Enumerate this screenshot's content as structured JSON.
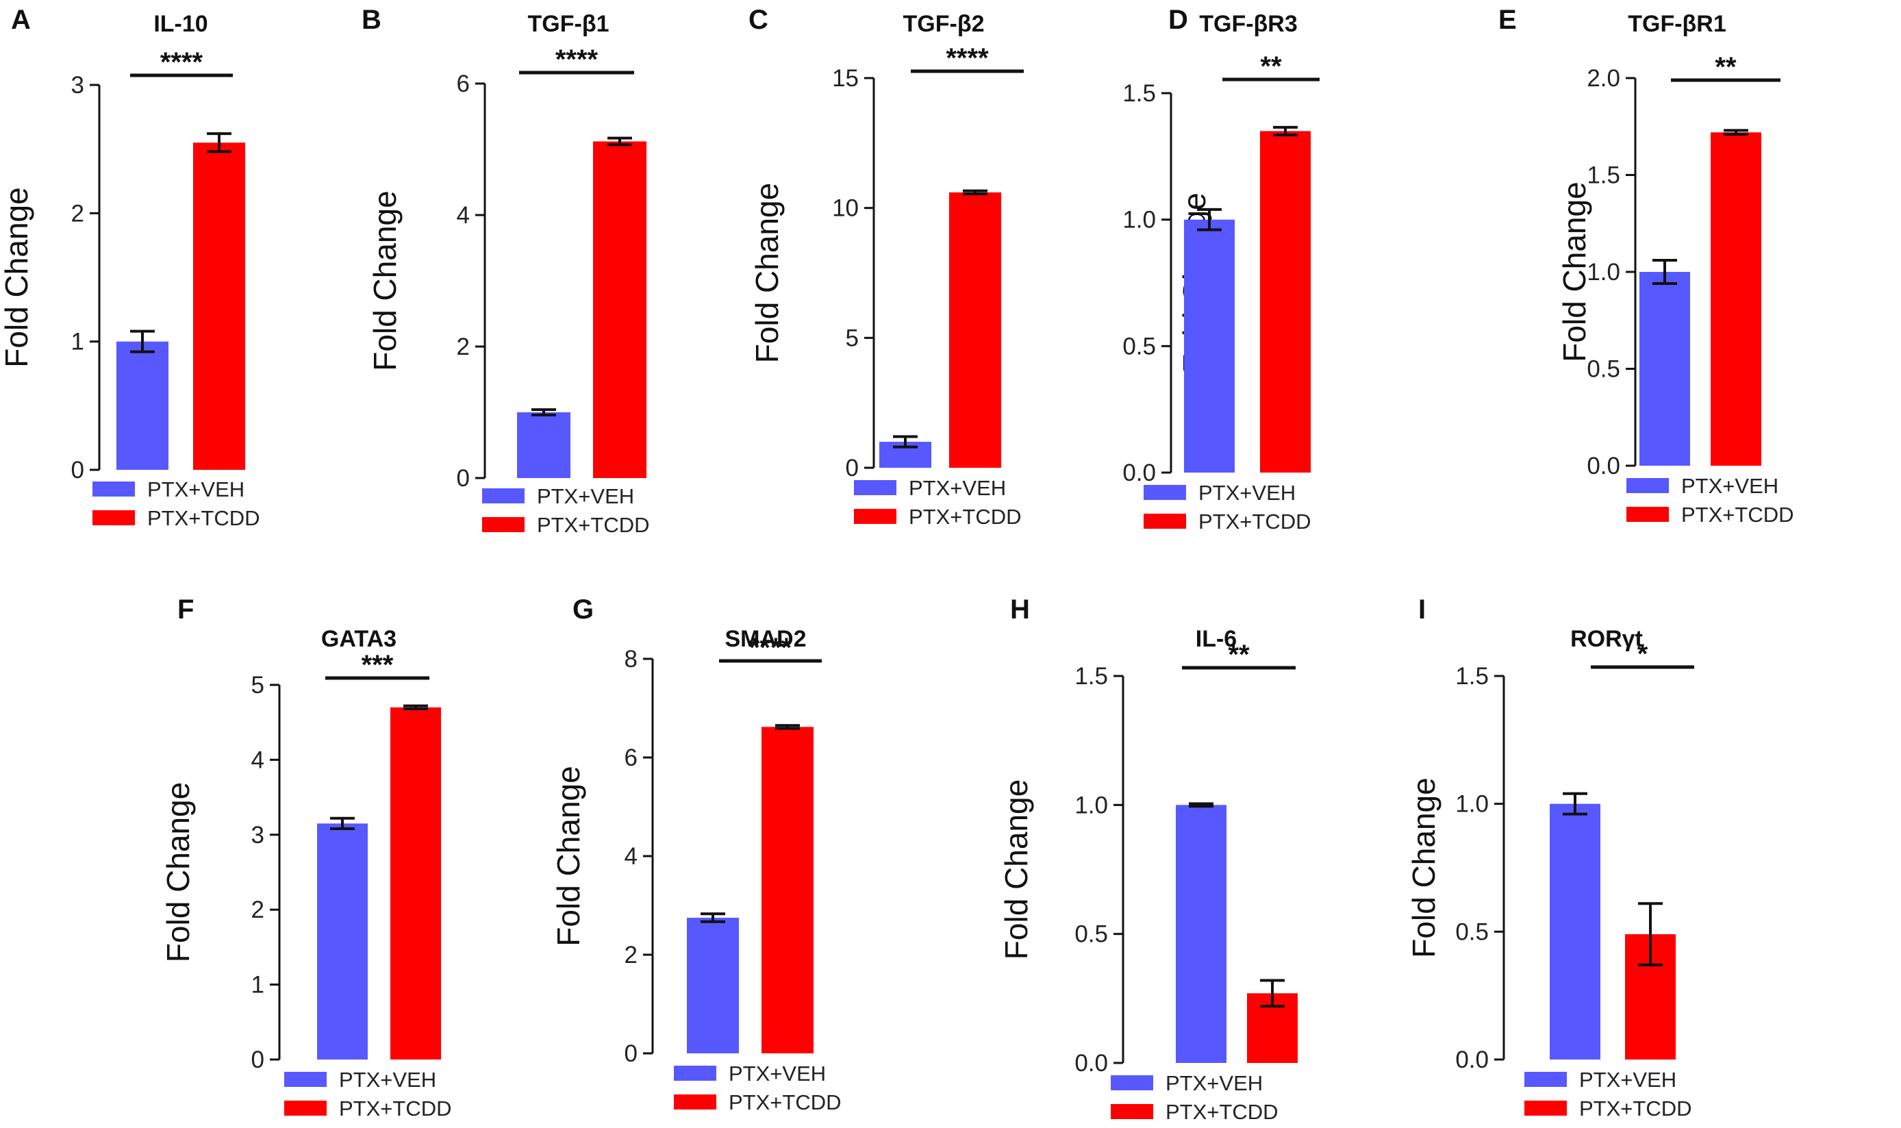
{
  "legend": {
    "veh_label": "PTX+VEH",
    "tcdd_label": "PTX+TCDD"
  },
  "colors": {
    "veh": "#5858ff",
    "tcdd": "#ff0000",
    "axis": "#111111"
  },
  "chart_data": [
    {
      "panel": "A",
      "type": "bar",
      "title": "IL-10",
      "ylabel": "Fold Change",
      "categories": [
        "PTX+VEH",
        "PTX+TCDD"
      ],
      "values": [
        1.0,
        2.55
      ],
      "errors": [
        0.08,
        0.07
      ],
      "ylim": [
        0,
        3
      ],
      "yticks": [
        "0",
        "1",
        "2",
        "3"
      ],
      "significance": "****"
    },
    {
      "panel": "B",
      "type": "bar",
      "title": "TGF-β1",
      "ylabel": "Fold Change",
      "categories": [
        "PTX+VEH",
        "PTX+TCDD"
      ],
      "values": [
        1.0,
        5.12
      ],
      "errors": [
        0.04,
        0.05
      ],
      "ylim": [
        0,
        6
      ],
      "yticks": [
        "0",
        "2",
        "4",
        "6"
      ],
      "significance": "****"
    },
    {
      "panel": "C",
      "type": "bar",
      "title": "TGF-β2",
      "ylabel": "Fold Change",
      "categories": [
        "PTX+VEH",
        "PTX+TCDD"
      ],
      "values": [
        1.0,
        10.6
      ],
      "errors": [
        0.2,
        0.06
      ],
      "ylim": [
        0,
        15
      ],
      "yticks": [
        "0",
        "5",
        "10",
        "15"
      ],
      "significance": "****"
    },
    {
      "panel": "D",
      "type": "bar",
      "title": "TGF-βR3",
      "ylabel": "Fold Change",
      "categories": [
        "PTX+VEH",
        "PTX+TCDD"
      ],
      "values": [
        1.0,
        1.35
      ],
      "errors": [
        0.04,
        0.015
      ],
      "ylim": [
        0,
        1.5
      ],
      "yticks": [
        "0.0",
        "0.5",
        "1.0",
        "1.5"
      ],
      "significance": "**"
    },
    {
      "panel": "E",
      "type": "bar",
      "title": "TGF-βR1",
      "ylabel": "Fold Change",
      "categories": [
        "PTX+VEH",
        "PTX+TCDD"
      ],
      "values": [
        1.0,
        1.72
      ],
      "errors": [
        0.06,
        0.01
      ],
      "ylim": [
        0,
        2.0
      ],
      "yticks": [
        "0.0",
        "0.5",
        "1.0",
        "1.5",
        "2.0"
      ],
      "significance": "**"
    },
    {
      "panel": "F",
      "type": "bar",
      "title": "GATA3",
      "ylabel": "Fold Change",
      "categories": [
        "PTX+VEH",
        "PTX+TCDD"
      ],
      "values": [
        3.15,
        4.7
      ],
      "errors": [
        0.07,
        0.02
      ],
      "ylim": [
        0,
        5
      ],
      "yticks": [
        "0",
        "1",
        "2",
        "3",
        "4",
        "5"
      ],
      "significance": "***"
    },
    {
      "panel": "G",
      "type": "bar",
      "title": "SMAD2",
      "ylabel": "Fold Change",
      "categories": [
        "PTX+VEH",
        "PTX+TCDD"
      ],
      "values": [
        2.75,
        6.62
      ],
      "errors": [
        0.08,
        0.03
      ],
      "ylim": [
        0,
        8
      ],
      "yticks": [
        "0",
        "2",
        "4",
        "6",
        "8"
      ],
      "significance": "****"
    },
    {
      "panel": "H",
      "type": "bar",
      "title": "IL-6",
      "ylabel": "Fold Change",
      "categories": [
        "PTX+VEH",
        "PTX+TCDD"
      ],
      "values": [
        1.0,
        0.27
      ],
      "errors": [
        0.005,
        0.05
      ],
      "ylim": [
        0,
        1.5
      ],
      "yticks": [
        "0.0",
        "0.5",
        "1.0",
        "1.5"
      ],
      "significance": "**"
    },
    {
      "panel": "I",
      "type": "bar",
      "title": "RORγt",
      "ylabel": "Fold Change",
      "categories": [
        "PTX+VEH",
        "PTX+TCDD"
      ],
      "values": [
        1.0,
        0.49
      ],
      "errors": [
        0.04,
        0.12
      ],
      "ylim": [
        0,
        1.5
      ],
      "yticks": [
        "0.0",
        "0.5",
        "1.0",
        "1.5"
      ],
      "significance": "*"
    }
  ]
}
